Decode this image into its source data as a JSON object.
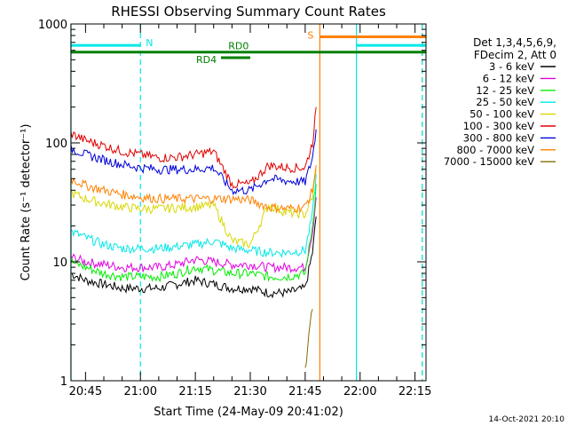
{
  "chart_data": {
    "type": "line",
    "title": "RHESSI Observing Summary Count Rates",
    "xlabel": "Start Time (24-May-09 20:41:02)",
    "ylabel": "Count Rate (s⁻¹ detector⁻¹)",
    "y_scale": "log",
    "ylim": [
      1,
      1000
    ],
    "xlim": [
      "20:41:02",
      "22:18:00"
    ],
    "y_ticks": [
      "1",
      "10",
      "100",
      "1000"
    ],
    "x_ticks": [
      "20:45",
      "21:00",
      "21:15",
      "21:30",
      "21:45",
      "22:00",
      "22:15"
    ],
    "timestamp": "14-Oct-2021 20:10",
    "legend": {
      "placement": "right",
      "header": [
        "Det 1,3,4,5,6,9,",
        "FDecim 2, Att 0"
      ]
    },
    "series": [
      {
        "name": "3 - 6 keV",
        "color": "#000000",
        "x": [
          "20:41",
          "20:45",
          "20:50",
          "20:55",
          "21:00",
          "21:05",
          "21:10",
          "21:15",
          "21:20",
          "21:25",
          "21:30",
          "21:35",
          "21:40",
          "21:45",
          "21:47",
          "21:48"
        ],
        "y": [
          8,
          7,
          6.5,
          6,
          6,
          6,
          6.5,
          7,
          6.5,
          6,
          6,
          5.5,
          5.5,
          6,
          12,
          24
        ]
      },
      {
        "name": "6 - 12 keV",
        "color": "#e000e0",
        "x": [
          "20:41",
          "20:45",
          "20:50",
          "20:55",
          "21:00",
          "21:05",
          "21:10",
          "21:15",
          "21:20",
          "21:25",
          "21:30",
          "21:35",
          "21:40",
          "21:45",
          "21:47",
          "21:48"
        ],
        "y": [
          11,
          10,
          9.5,
          9,
          9,
          9,
          9.5,
          10.5,
          10,
          9.5,
          9.5,
          9,
          9,
          9,
          18,
          35
        ]
      },
      {
        "name": "12 - 25 keV",
        "color": "#00ee00",
        "x": [
          "20:41",
          "20:45",
          "20:50",
          "20:55",
          "21:00",
          "21:05",
          "21:10",
          "21:15",
          "21:20",
          "21:25",
          "21:30",
          "21:35",
          "21:40",
          "21:45",
          "21:47",
          "21:48"
        ],
        "y": [
          10,
          9,
          8,
          7.5,
          7.5,
          7.5,
          8,
          9,
          8.5,
          8,
          8,
          7.5,
          7.5,
          8,
          20,
          45
        ]
      },
      {
        "name": "25 - 50 keV",
        "color": "#00e8e8",
        "x": [
          "20:41",
          "20:45",
          "20:50",
          "20:55",
          "21:00",
          "21:05",
          "21:10",
          "21:15",
          "21:20",
          "21:25",
          "21:30",
          "21:35",
          "21:40",
          "21:45",
          "21:47",
          "21:48"
        ],
        "y": [
          18,
          16,
          14,
          13,
          13,
          13,
          13.5,
          14,
          15,
          13,
          12.5,
          12,
          12,
          12.5,
          25,
          55
        ]
      },
      {
        "name": "50 - 100 keV",
        "color": "#d8d800",
        "x": [
          "20:41",
          "20:45",
          "20:50",
          "20:55",
          "21:00",
          "21:05",
          "21:10",
          "21:15",
          "21:20",
          "21:25",
          "21:30",
          "21:35",
          "21:40",
          "21:45",
          "21:47",
          "21:48"
        ],
        "y": [
          38,
          34,
          31,
          29,
          28,
          28,
          28.5,
          29,
          30,
          15,
          14,
          30,
          26,
          25,
          35,
          60
        ]
      },
      {
        "name": "100 - 300 keV",
        "color": "#e00000",
        "x": [
          "20:41",
          "20:45",
          "20:50",
          "20:55",
          "21:00",
          "21:05",
          "21:10",
          "21:15",
          "21:20",
          "21:25",
          "21:30",
          "21:35",
          "21:40",
          "21:45",
          "21:47",
          "21:48"
        ],
        "y": [
          120,
          105,
          95,
          85,
          80,
          75,
          76,
          80,
          85,
          45,
          45,
          65,
          62,
          62,
          100,
          200
        ]
      },
      {
        "name": "300 - 800 keV",
        "color": "#0000d8",
        "x": [
          "20:41",
          "20:45",
          "20:50",
          "20:55",
          "21:00",
          "21:05",
          "21:10",
          "21:15",
          "21:20",
          "21:25",
          "21:30",
          "21:35",
          "21:40",
          "21:45",
          "21:47",
          "21:48"
        ],
        "y": [
          90,
          80,
          72,
          66,
          62,
          60,
          60,
          60,
          62,
          40,
          40,
          50,
          48,
          47,
          75,
          130
        ]
      },
      {
        "name": "800 - 7000 keV",
        "color": "#ff8000",
        "x": [
          "20:41",
          "20:45",
          "20:50",
          "20:55",
          "21:00",
          "21:05",
          "21:10",
          "21:15",
          "21:20",
          "21:25",
          "21:30",
          "21:35",
          "21:40",
          "21:45",
          "21:47",
          "21:48"
        ],
        "y": [
          50,
          44,
          40,
          37,
          35,
          34,
          34,
          34,
          34,
          34,
          33,
          29,
          28,
          29,
          40,
          65
        ]
      },
      {
        "name": "7000 - 15000 keV",
        "color": "#807000",
        "x": [
          "21:45",
          "21:46",
          "21:47"
        ],
        "y": [
          1.2,
          2.5,
          4
        ]
      }
    ],
    "markers": {
      "vlines": [
        {
          "x": "20:41",
          "color": "#00e8e8",
          "style": "solid"
        },
        {
          "x": "21:00",
          "color": "#00e8e8",
          "style": "dashed"
        },
        {
          "x": "21:49",
          "color": "#ff8000",
          "style": "solid"
        },
        {
          "x": "21:59",
          "color": "#00e8e8",
          "style": "solid"
        },
        {
          "x": "22:17",
          "color": "#ff8000",
          "style": "dashed"
        },
        {
          "x": "22:17",
          "color": "#00e8e8",
          "style": "dashed"
        }
      ],
      "bars": [
        {
          "label": "N",
          "x0": "20:41",
          "x1": "21:00",
          "y": 660,
          "color": "#00e8e8"
        },
        {
          "label": "S",
          "x0": "21:49",
          "x1": "22:18",
          "y": 780,
          "color": "#ff8000"
        },
        {
          "label": "",
          "x0": "21:59",
          "x1": "22:18",
          "y": 660,
          "color": "#00e8e8"
        },
        {
          "label": "RD0",
          "x0": "20:41",
          "x1": "22:18",
          "y": 580,
          "color": "#008000"
        },
        {
          "label": "RD4",
          "x0": "21:22",
          "x1": "21:30",
          "y": 520,
          "color": "#008000"
        }
      ]
    }
  }
}
